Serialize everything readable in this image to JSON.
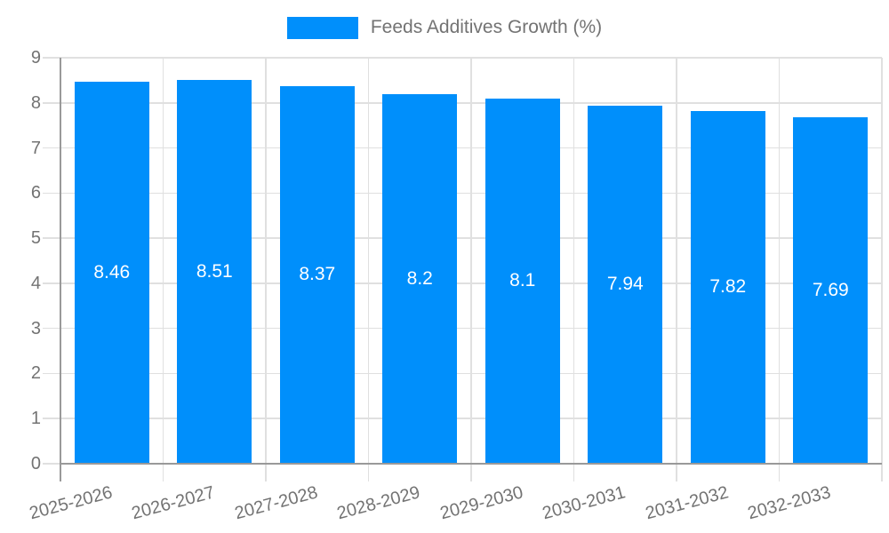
{
  "chart_data": {
    "type": "bar",
    "title": "Feeds Additives Growth (%)",
    "legend": [
      {
        "label": "Feeds Additives Growth (%)",
        "color": "#008ffb"
      }
    ],
    "legend_position": "top-center",
    "categories": [
      "2025-2026",
      "2026-2027",
      "2027-2028",
      "2028-2029",
      "2029-2030",
      "2030-2031",
      "2031-2032",
      "2032-2033"
    ],
    "values": [
      8.46,
      8.51,
      8.37,
      8.2,
      8.1,
      7.94,
      7.82,
      7.69
    ],
    "value_labels": [
      "8.46",
      "8.51",
      "8.37",
      "8.2",
      "8.1",
      "7.94",
      "7.82",
      "7.69"
    ],
    "xlabel": "",
    "ylabel": "",
    "ylim": [
      0,
      9
    ],
    "ytick_step": 1,
    "yticks": [
      "0",
      "1",
      "2",
      "3",
      "4",
      "5",
      "6",
      "7",
      "8",
      "9"
    ],
    "grid": true,
    "colors": {
      "bar": "#008ffb",
      "value_label": "#ffffff",
      "axis_line": "#999999",
      "gridline": "#e0e0e0",
      "tick_label": "#737373",
      "background": "#ffffff"
    }
  }
}
